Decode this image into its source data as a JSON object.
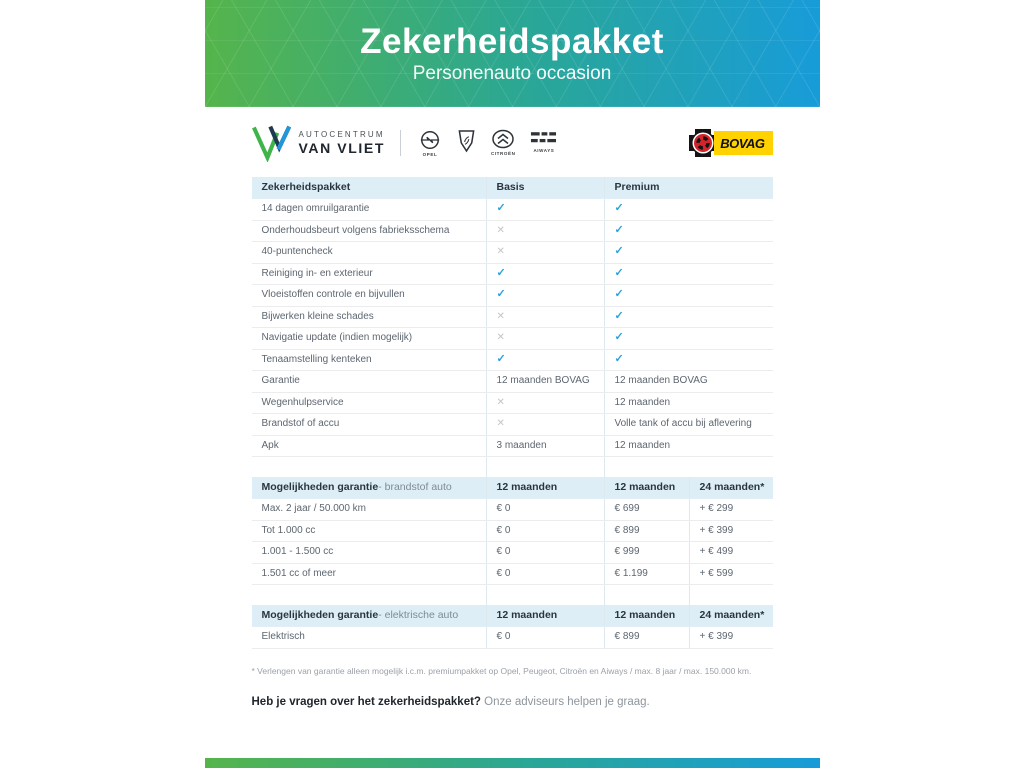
{
  "header": {
    "title": "Zekerheidspakket",
    "subtitle": "Personenauto occasion",
    "gradient_from": "#55b44b",
    "gradient_to": "#189cd9"
  },
  "branding": {
    "dealer_top": "AUTOCENTRUM",
    "dealer_bottom": "VAN VLIET",
    "brands": [
      {
        "name": "Opel",
        "label": "OPEL"
      },
      {
        "name": "Peugeot",
        "label": ""
      },
      {
        "name": "Citroën",
        "label": "CITROËN"
      },
      {
        "name": "Aiways",
        "label": "AIWAYS"
      }
    ],
    "bovag_label": "BOVAG"
  },
  "colors": {
    "check": "#2aa2db",
    "cross": "#c4c6cd",
    "table_header_bg": "#ddeef7",
    "bovag_yellow": "#ffd200"
  },
  "tables": [
    {
      "kind": "features",
      "header": {
        "label": "Zekerheidspakket",
        "suffix": "",
        "cols": [
          "Basis",
          "Premium"
        ]
      },
      "rows": [
        [
          "14 dagen omruilgarantie",
          "check",
          "check"
        ],
        [
          "Onderhoudsbeurt volgens fabrieksschema",
          "cross",
          "check"
        ],
        [
          "40-puntencheck",
          "cross",
          "check"
        ],
        [
          "Reiniging in- en exterieur",
          "check",
          "check"
        ],
        [
          "Vloeistoffen controle en bijvullen",
          "check",
          "check"
        ],
        [
          "Bijwerken kleine schades",
          "cross",
          "check"
        ],
        [
          "Navigatie update (indien mogelijk)",
          "cross",
          "check"
        ],
        [
          "Tenaamstelling kenteken",
          "check",
          "check"
        ],
        [
          "Garantie",
          "12 maanden BOVAG",
          "12 maanden BOVAG"
        ],
        [
          "Wegenhulpservice",
          "cross",
          "12 maanden"
        ],
        [
          "Brandstof of accu",
          "cross",
          "Volle tank of accu bij aflevering"
        ],
        [
          "Apk",
          "3 maanden",
          "12 maanden"
        ]
      ],
      "trailing_spacer": true
    },
    {
      "kind": "pricing",
      "header": {
        "label": "Mogelijkheden garantie",
        "suffix": " - brandstof auto",
        "cols": [
          "12 maanden",
          "12 maanden",
          "24 maanden*"
        ]
      },
      "rows": [
        [
          "Max. 2 jaar / 50.000 km",
          "€ 0",
          "€ 699",
          "+ € 299"
        ],
        [
          "Tot 1.000 cc",
          "€ 0",
          "€ 899",
          "+ € 399"
        ],
        [
          "1.001 - 1.500 cc",
          "€ 0",
          "€ 999",
          "+ € 499"
        ],
        [
          "1.501 cc of meer",
          "€ 0",
          "€ 1.199",
          "+ € 599"
        ]
      ],
      "trailing_spacer": true
    },
    {
      "kind": "pricing",
      "header": {
        "label": "Mogelijkheden garantie",
        "suffix": " - elektrische auto",
        "cols": [
          "12 maanden",
          "12 maanden",
          "24 maanden*"
        ]
      },
      "rows": [
        [
          "Elektrisch",
          "€ 0",
          "€ 899",
          "+ € 399"
        ]
      ],
      "trailing_spacer": false
    }
  ],
  "footnote": "* Verlengen van garantie alleen mogelijk i.c.m. premiumpakket op Opel, Peugeot, Citroën en Aiways / max. 8 jaar / max. 150.000 km.",
  "question": {
    "bold": "Heb je vragen over het zekerheidspakket?",
    "light": "Onze adviseurs helpen je graag."
  }
}
